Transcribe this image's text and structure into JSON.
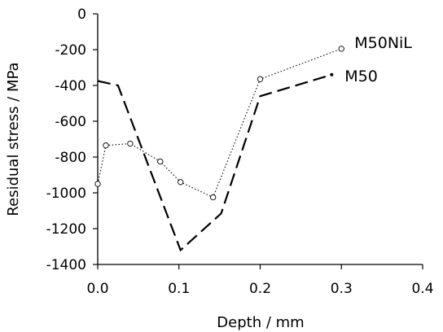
{
  "chart_data": {
    "type": "line",
    "xlabel": "Depth / mm",
    "ylabel": "Residual stress / MPa",
    "xlim": [
      0,
      0.4
    ],
    "ylim": [
      -1400,
      0
    ],
    "xticks": [
      0.0,
      0.1,
      0.2,
      0.3,
      0.4
    ],
    "xtick_labels": [
      "0.0",
      "0.1",
      "0.2",
      "0.3",
      "0.4"
    ],
    "yticks": [
      0,
      -200,
      -400,
      -600,
      -800,
      -1000,
      -1200,
      -1400
    ],
    "ytick_labels": [
      "0",
      "-200",
      "-400",
      "-600",
      "-800",
      "-1000",
      "-1200",
      "-1400"
    ],
    "grid": false,
    "legend": "inline labels at line ends",
    "series": [
      {
        "name": "M50NiL",
        "style": "dotted with open circle markers",
        "x": [
          0.0,
          0.01,
          0.04,
          0.077,
          0.102,
          0.142,
          0.2,
          0.3
        ],
        "y": [
          -950,
          -735,
          -725,
          -825,
          -940,
          -1025,
          -365,
          -195
        ]
      },
      {
        "name": "M50",
        "style": "long dashes",
        "x": [
          0.0,
          0.025,
          0.102,
          0.152,
          0.2,
          0.288
        ],
        "y": [
          -375,
          -400,
          -1320,
          -1115,
          -460,
          -340
        ]
      }
    ]
  }
}
